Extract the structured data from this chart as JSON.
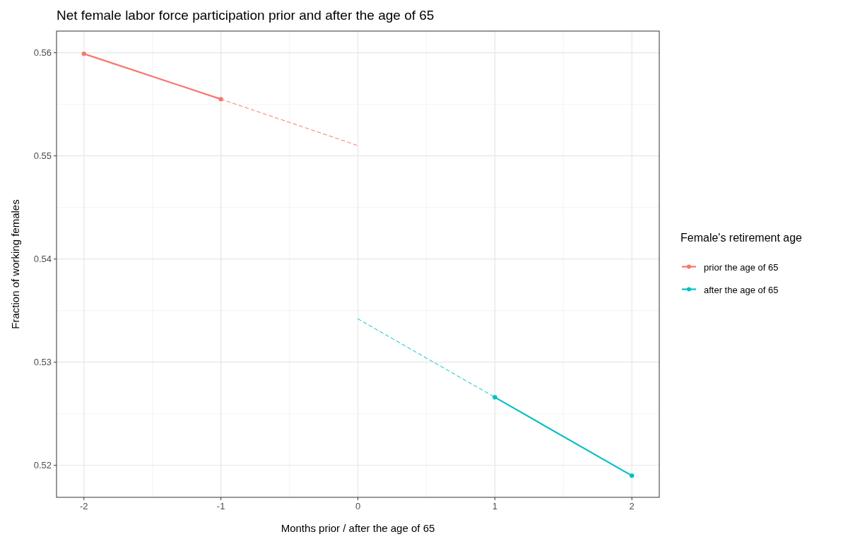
{
  "chart_data": {
    "type": "line",
    "title": "Net female labor force participation prior and after the age of 65",
    "xlabel": "Months prior / after the age of 65",
    "ylabel": "Fraction of working females",
    "legend_title": "Female's retirement age",
    "series": [
      {
        "name": "prior the age of 65",
        "color": "#f8766d",
        "x": [
          -2,
          -1
        ],
        "values": [
          0.5599,
          0.5555
        ],
        "marker": "circle",
        "line_style": "solid"
      },
      {
        "color": "#f8766d",
        "x": [
          -1,
          0
        ],
        "values": [
          0.5555,
          0.551
        ],
        "line_style": "dashed"
      },
      {
        "color": "#00bfc4",
        "x": [
          0,
          1
        ],
        "values": [
          0.5342,
          0.5266
        ],
        "line_style": "dashed"
      },
      {
        "name": "after the age of 65",
        "color": "#00bfc4",
        "x": [
          1,
          2
        ],
        "values": [
          0.5266,
          0.519
        ],
        "marker": "circle",
        "line_style": "solid"
      }
    ],
    "xlim": [
      -2.2,
      2.2
    ],
    "xticks": [
      -2,
      -1,
      0,
      1,
      2
    ],
    "ylim": [
      0.5169,
      0.5621
    ],
    "yticks": [
      0.52,
      0.53,
      0.54,
      0.55,
      0.56
    ],
    "grid": true,
    "legend": "right"
  }
}
